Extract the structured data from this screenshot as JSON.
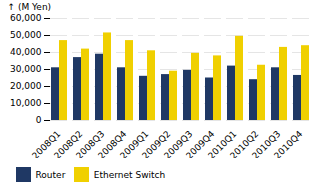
{
  "chart_data": {
    "type": "bar",
    "ylabel": "(M Yen)",
    "categories": [
      "2008Q1",
      "2008Q2",
      "2008Q3",
      "2008Q4",
      "2009Q1",
      "2009Q2",
      "2009Q3",
      "2009Q4",
      "2010Q1",
      "2010Q2",
      "2010Q3",
      "2010Q4"
    ],
    "series": [
      {
        "name": "Router",
        "color": "#1f3864",
        "values": [
          31000,
          37000,
          39000,
          31000,
          26000,
          27000,
          29500,
          25000,
          32000,
          24000,
          31000,
          26500
        ]
      },
      {
        "name": "Ethernet Switch",
        "color": "#f0d000",
        "values": [
          47000,
          42000,
          51500,
          47000,
          41000,
          29000,
          39500,
          38000,
          49500,
          32500,
          43000,
          44000
        ]
      }
    ],
    "ylim": [
      0,
      60000
    ],
    "yticks": [
      0,
      {
        "value": 10000,
        "label": "10,000"
      },
      {
        "value": 20000,
        "label": "20,000"
      },
      {
        "value": 30000,
        "label": "30,000"
      },
      {
        "value": 40000,
        "label": "40,000"
      },
      {
        "value": 50000,
        "label": "50,000"
      },
      {
        "value": 60000,
        "label": "60,000"
      }
    ],
    "grid": true,
    "legend": "lower left"
  }
}
